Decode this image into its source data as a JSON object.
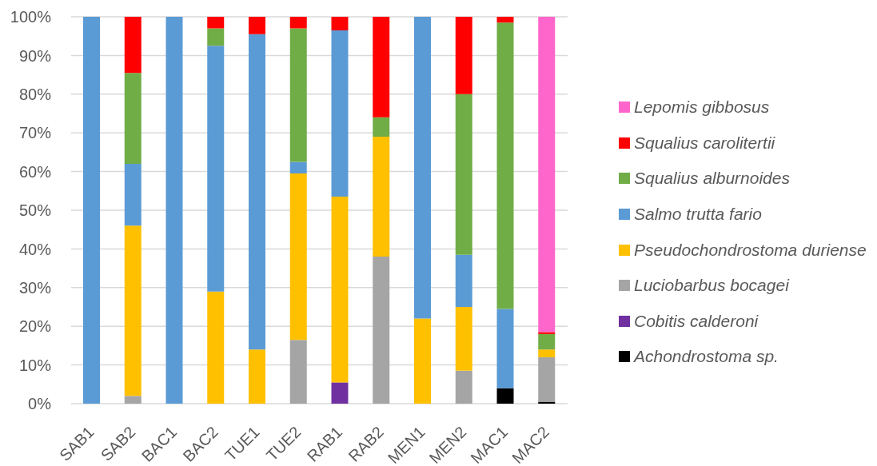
{
  "chart_data": {
    "type": "bar",
    "stacked": true,
    "categories": [
      "SAB1",
      "SAB2",
      "BAC1",
      "BAC2",
      "TUE1",
      "TUE2",
      "RAB1",
      "RAB2",
      "MEN1",
      "MEN2",
      "MAC1",
      "MAC2"
    ],
    "series": [
      {
        "name": "Achondrostoma sp.",
        "color": "#000000",
        "values": [
          0,
          0,
          0,
          0,
          0,
          0,
          0,
          0,
          0,
          0,
          4,
          0.5
        ]
      },
      {
        "name": "Cobitis calderoni",
        "color": "#7030a0",
        "values": [
          0,
          0,
          0,
          0,
          0,
          0,
          5.5,
          0,
          0,
          0,
          0,
          0
        ]
      },
      {
        "name": "Luciobarbus bocagei",
        "color": "#a5a5a5",
        "values": [
          0,
          2,
          0,
          0,
          0,
          16.5,
          0,
          38,
          0,
          8.5,
          0,
          11.5
        ]
      },
      {
        "name": "Pseudochondrostoma duriense",
        "color": "#ffc000",
        "values": [
          0,
          44,
          0,
          29,
          14,
          43,
          48,
          31,
          22,
          16.5,
          0,
          2
        ]
      },
      {
        "name": "Salmo trutta fario",
        "color": "#5b9bd5",
        "values": [
          100,
          16,
          100,
          63.5,
          81.5,
          3,
          43,
          0,
          78,
          13.5,
          20.5,
          0
        ]
      },
      {
        "name": "Squalius alburnoides",
        "color": "#70ad47",
        "values": [
          0,
          23.5,
          0,
          4.5,
          0,
          34.5,
          0,
          5,
          0,
          41.5,
          74,
          4
        ]
      },
      {
        "name": "Squalius carolitertii",
        "color": "#ff0000",
        "values": [
          0,
          14.5,
          0,
          3,
          4.5,
          3,
          3.5,
          26,
          0,
          20,
          1.5,
          0.5
        ]
      },
      {
        "name": "Lepomis gibbosus",
        "color": "#ff66cc",
        "values": [
          0,
          0,
          0,
          0,
          0,
          0,
          0,
          0,
          0,
          0,
          0,
          81.5
        ]
      }
    ],
    "ylim": [
      0,
      100
    ],
    "yticks": [
      {
        "value": 0,
        "label": "0%"
      },
      {
        "value": 10,
        "label": "10%"
      },
      {
        "value": 20,
        "label": "20%"
      },
      {
        "value": 30,
        "label": "30%"
      },
      {
        "value": 40,
        "label": "40%"
      },
      {
        "value": 50,
        "label": "50%"
      },
      {
        "value": 60,
        "label": "60%"
      },
      {
        "value": 70,
        "label": "70%"
      },
      {
        "value": 80,
        "label": "80%"
      },
      {
        "value": 90,
        "label": "90%"
      },
      {
        "value": 100,
        "label": "100%"
      }
    ],
    "grid": "y",
    "legend": "right"
  }
}
